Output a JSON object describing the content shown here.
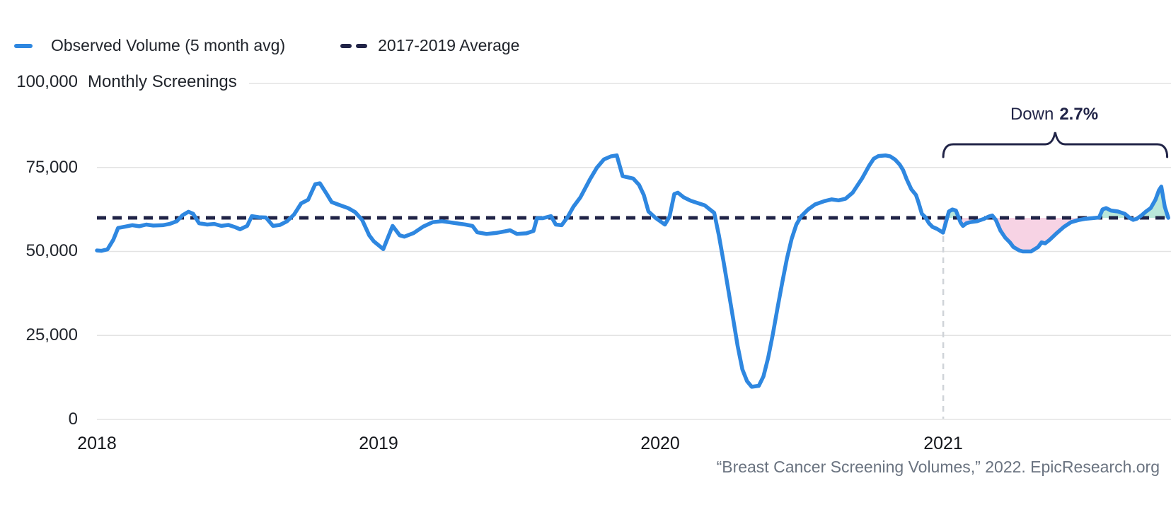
{
  "legend": {
    "items": [
      {
        "label": "Observed Volume (5 month avg)",
        "swatch": "blue-line"
      },
      {
        "label": "2017-2019 Average",
        "swatch": "navy-dashes"
      }
    ]
  },
  "y_axis": {
    "top_tick": "100,000",
    "unit_label": "Monthly Screenings",
    "ticks": [
      "75,000",
      "50,000",
      "25,000",
      "0"
    ]
  },
  "x_axis": {
    "ticks": [
      "2018",
      "2019",
      "2020",
      "2021"
    ]
  },
  "annotation": {
    "prefix": "Down",
    "value": "2.7%"
  },
  "source_credit": "“Breast Cancer Screening Volumes,” 2022. EpicResearch.org",
  "colors": {
    "line": "#2e87e0",
    "navy": "#212447",
    "below_fill": "#f7d3e4",
    "above_fill": "#b9e7da",
    "gridline": "#e3e3e3",
    "vline": "#cfd3d8",
    "text_dark": "#20242b",
    "text_gray": "#6a7380"
  },
  "chart_data": {
    "type": "line",
    "title": "Monthly Screenings",
    "ylabel": "Monthly Screenings",
    "ylim": [
      0,
      100000
    ],
    "y_gridlines": [
      100000,
      75000,
      50000,
      25000,
      0
    ],
    "x_tick_years": [
      "2018",
      "2019",
      "2020",
      "2021"
    ],
    "x_unit": "months since Jan 2018",
    "legend_position": "top-left",
    "average_line": {
      "label": "2017-2019 Average",
      "value": 60000
    },
    "annotation_region": {
      "label": "Down 2.7%",
      "start_month": 36.06,
      "end_month": 45.6
    },
    "series": [
      {
        "name": "Observed Volume (5 month avg)",
        "points": [
          [
            0,
            50300
          ],
          [
            0.2,
            50200
          ],
          [
            0.45,
            50600
          ],
          [
            0.7,
            53500
          ],
          [
            0.9,
            57000
          ],
          [
            1.2,
            57400
          ],
          [
            1.5,
            57800
          ],
          [
            1.8,
            57500
          ],
          [
            2.1,
            58000
          ],
          [
            2.4,
            57700
          ],
          [
            2.8,
            57800
          ],
          [
            3.1,
            58200
          ],
          [
            3.4,
            59000
          ],
          [
            3.65,
            60800
          ],
          [
            3.9,
            61800
          ],
          [
            4.1,
            61200
          ],
          [
            4.35,
            58400
          ],
          [
            4.7,
            58000
          ],
          [
            5,
            58200
          ],
          [
            5.3,
            57600
          ],
          [
            5.6,
            57900
          ],
          [
            5.9,
            57200
          ],
          [
            6.1,
            56600
          ],
          [
            6.4,
            57600
          ],
          [
            6.6,
            60500
          ],
          [
            6.9,
            60200
          ],
          [
            7.2,
            60100
          ],
          [
            7.5,
            57600
          ],
          [
            7.8,
            57900
          ],
          [
            8.1,
            59000
          ],
          [
            8.4,
            61000
          ],
          [
            8.7,
            64300
          ],
          [
            9,
            65400
          ],
          [
            9.3,
            70000
          ],
          [
            9.5,
            70300
          ],
          [
            9.8,
            67000
          ],
          [
            10,
            64700
          ],
          [
            10.3,
            63900
          ],
          [
            10.7,
            62900
          ],
          [
            11,
            61700
          ],
          [
            11.3,
            59400
          ],
          [
            11.6,
            54800
          ],
          [
            11.8,
            53000
          ],
          [
            12.2,
            50700
          ],
          [
            12.6,
            57600
          ],
          [
            12.9,
            54800
          ],
          [
            13.1,
            54400
          ],
          [
            13.5,
            55500
          ],
          [
            13.9,
            57400
          ],
          [
            14.3,
            58700
          ],
          [
            14.7,
            59000
          ],
          [
            15.2,
            58500
          ],
          [
            15.7,
            58000
          ],
          [
            16,
            57600
          ],
          [
            16.2,
            55700
          ],
          [
            16.6,
            55200
          ],
          [
            17,
            55500
          ],
          [
            17.4,
            56000
          ],
          [
            17.6,
            56300
          ],
          [
            17.9,
            55200
          ],
          [
            18.3,
            55400
          ],
          [
            18.6,
            56100
          ],
          [
            18.75,
            59900
          ],
          [
            19,
            59900
          ],
          [
            19.35,
            60500
          ],
          [
            19.55,
            58000
          ],
          [
            19.8,
            57800
          ],
          [
            20.05,
            60200
          ],
          [
            20.3,
            63300
          ],
          [
            20.6,
            66100
          ],
          [
            21,
            71400
          ],
          [
            21.3,
            74900
          ],
          [
            21.6,
            77400
          ],
          [
            21.9,
            78300
          ],
          [
            22.15,
            78600
          ],
          [
            22.4,
            72400
          ],
          [
            22.6,
            72100
          ],
          [
            22.85,
            71700
          ],
          [
            23.1,
            69800
          ],
          [
            23.3,
            66800
          ],
          [
            23.5,
            61900
          ],
          [
            23.8,
            60000
          ],
          [
            24,
            59000
          ],
          [
            24.2,
            58000
          ],
          [
            24.4,
            60400
          ],
          [
            24.6,
            67100
          ],
          [
            24.75,
            67500
          ],
          [
            25,
            66100
          ],
          [
            25.3,
            65100
          ],
          [
            25.6,
            64400
          ],
          [
            25.9,
            63700
          ],
          [
            26.1,
            62600
          ],
          [
            26.3,
            61500
          ],
          [
            26.5,
            54800
          ],
          [
            26.7,
            47000
          ],
          [
            26.9,
            38600
          ],
          [
            27.1,
            30300
          ],
          [
            27.3,
            21900
          ],
          [
            27.5,
            14900
          ],
          [
            27.7,
            11400
          ],
          [
            27.9,
            9700
          ],
          [
            28.2,
            10000
          ],
          [
            28.4,
            12800
          ],
          [
            28.6,
            18400
          ],
          [
            28.8,
            25400
          ],
          [
            29,
            33200
          ],
          [
            29.2,
            40800
          ],
          [
            29.4,
            47900
          ],
          [
            29.6,
            53700
          ],
          [
            29.8,
            58000
          ],
          [
            30,
            60400
          ],
          [
            30.3,
            62500
          ],
          [
            30.6,
            64000
          ],
          [
            31,
            65000
          ],
          [
            31.3,
            65500
          ],
          [
            31.6,
            65200
          ],
          [
            31.9,
            65700
          ],
          [
            32.2,
            67500
          ],
          [
            32.6,
            71700
          ],
          [
            32.9,
            75500
          ],
          [
            33.1,
            77600
          ],
          [
            33.3,
            78400
          ],
          [
            33.6,
            78600
          ],
          [
            33.8,
            78300
          ],
          [
            34,
            77400
          ],
          [
            34.2,
            75900
          ],
          [
            34.35,
            74200
          ],
          [
            34.5,
            71500
          ],
          [
            34.7,
            68500
          ],
          [
            34.9,
            66800
          ],
          [
            35,
            64700
          ],
          [
            35.15,
            61200
          ],
          [
            35.3,
            60200
          ],
          [
            35.45,
            58400
          ],
          [
            35.6,
            57300
          ],
          [
            35.8,
            56700
          ],
          [
            36.05,
            55600
          ],
          [
            36.3,
            61900
          ],
          [
            36.45,
            62500
          ],
          [
            36.6,
            62200
          ],
          [
            36.8,
            58600
          ],
          [
            36.9,
            57600
          ],
          [
            37.05,
            58400
          ],
          [
            37.2,
            58700
          ],
          [
            37.5,
            59000
          ],
          [
            37.8,
            59700
          ],
          [
            38,
            60400
          ],
          [
            38.15,
            60700
          ],
          [
            38.3,
            59400
          ],
          [
            38.5,
            56200
          ],
          [
            38.7,
            54100
          ],
          [
            38.9,
            52700
          ],
          [
            39.05,
            51300
          ],
          [
            39.3,
            50300
          ],
          [
            39.45,
            50000
          ],
          [
            39.8,
            50000
          ],
          [
            40.1,
            51300
          ],
          [
            40.25,
            52700
          ],
          [
            40.4,
            52400
          ],
          [
            40.6,
            53500
          ],
          [
            40.9,
            55500
          ],
          [
            41.2,
            57300
          ],
          [
            41.5,
            58700
          ],
          [
            41.8,
            59300
          ],
          [
            42.1,
            59700
          ],
          [
            42.4,
            59900
          ],
          [
            42.7,
            60100
          ],
          [
            42.85,
            62500
          ],
          [
            43,
            62900
          ],
          [
            43.2,
            62200
          ],
          [
            43.5,
            61900
          ],
          [
            43.8,
            61200
          ],
          [
            44,
            60000
          ],
          [
            44.15,
            59400
          ],
          [
            44.3,
            59700
          ],
          [
            44.5,
            60700
          ],
          [
            44.7,
            61900
          ],
          [
            44.9,
            62900
          ],
          [
            45.1,
            65400
          ],
          [
            45.25,
            68200
          ],
          [
            45.35,
            69300
          ],
          [
            45.5,
            63300
          ],
          [
            45.65,
            60000
          ]
        ]
      }
    ]
  }
}
